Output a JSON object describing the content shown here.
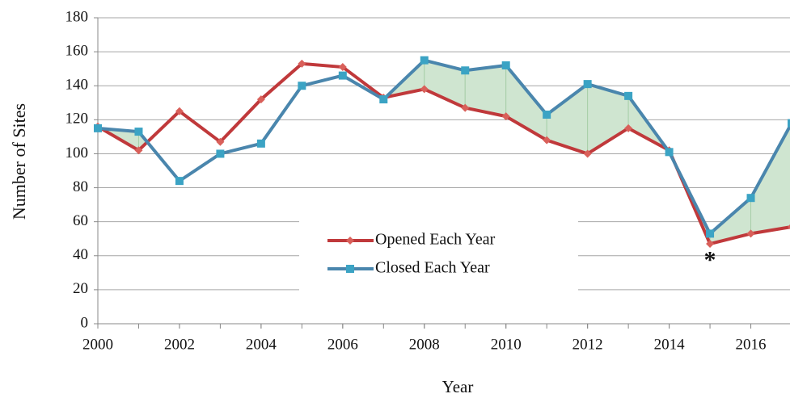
{
  "chart_data": {
    "type": "line",
    "x_label": "Year",
    "y_label": "Number of Sites",
    "x": [
      2000,
      2001,
      2002,
      2003,
      2004,
      2005,
      2006,
      2007,
      2008,
      2009,
      2010,
      2011,
      2012,
      2013,
      2014,
      2015,
      2016,
      2017
    ],
    "series": [
      {
        "name": "Opened Each Year",
        "color": "#c0393b",
        "marker": "diamond",
        "marker_color": "#d9605a",
        "values": [
          116,
          102,
          125,
          107,
          132,
          153,
          151,
          133,
          138,
          127,
          122,
          108,
          100,
          115,
          102,
          47,
          53,
          57
        ]
      },
      {
        "name": "Closed Each Year",
        "color": "#4a86ad",
        "marker": "square",
        "marker_color": "#3ba3c4",
        "values": [
          115,
          113,
          84,
          100,
          106,
          140,
          146,
          132,
          155,
          149,
          152,
          123,
          141,
          134,
          101,
          53,
          74,
          118
        ]
      }
    ],
    "fill_between_color": "#cfe5d0",
    "xlim": [
      2000,
      2017
    ],
    "xticks": [
      2000,
      2002,
      2004,
      2006,
      2008,
      2010,
      2012,
      2014,
      2016
    ],
    "ylim": [
      0,
      180
    ],
    "yticks": [
      0,
      20,
      40,
      60,
      80,
      100,
      120,
      140,
      160,
      180
    ],
    "grid": true,
    "legend": "lower center",
    "annotations": [
      {
        "text": "*",
        "x": 2015,
        "y": 40
      }
    ]
  }
}
